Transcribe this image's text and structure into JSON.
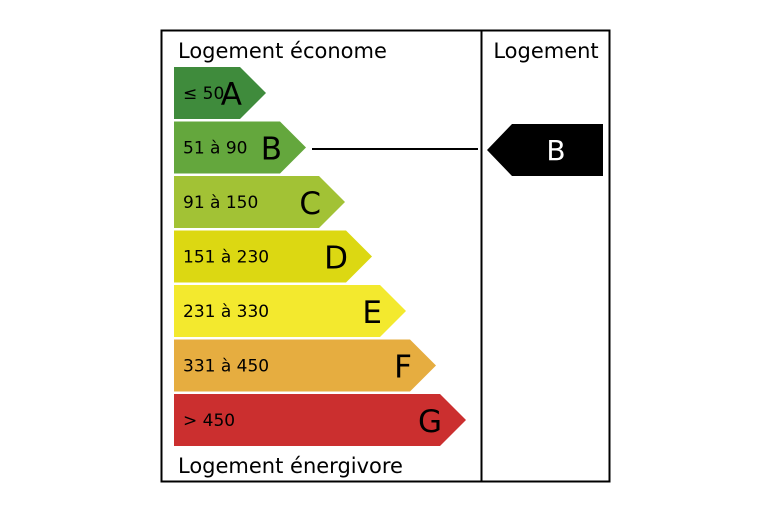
{
  "header": {
    "top_label": "Logement économe",
    "bottom_label": "Logement énergivore",
    "column_title": "Logement"
  },
  "classes": [
    {
      "letter": "A",
      "range": "≤ 50",
      "color": "#3f8b3c"
    },
    {
      "letter": "B",
      "range": "51 à 90",
      "color": "#64a73d"
    },
    {
      "letter": "C",
      "range": "91 à 150",
      "color": "#a2c235"
    },
    {
      "letter": "D",
      "range": "151 à 230",
      "color": "#dcd812"
    },
    {
      "letter": "E",
      "range": "231 à 330",
      "color": "#f3e92e"
    },
    {
      "letter": "F",
      "range": "331 à 450",
      "color": "#e6ad40"
    },
    {
      "letter": "G",
      "range": "> 450",
      "color": "#cb2f2f"
    }
  ],
  "rating": {
    "letter": "B",
    "color": "#000000"
  }
}
